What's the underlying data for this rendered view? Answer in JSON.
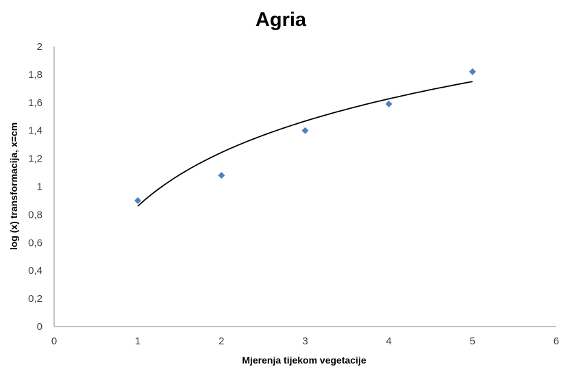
{
  "chart_data": {
    "type": "scatter",
    "title": "Agria",
    "xlabel": "Mjerenja tijekom vegetacije",
    "ylabel": "log (x) transformacija, x=cm",
    "xlim": [
      0,
      6
    ],
    "ylim": [
      0,
      2
    ],
    "x_ticks": [
      "0",
      "1",
      "2",
      "3",
      "4",
      "5",
      "6"
    ],
    "y_ticks": [
      "0",
      "0,2",
      "0,4",
      "0,6",
      "0,8",
      "1",
      "1,2",
      "1,4",
      "1,6",
      "1,8",
      "2"
    ],
    "grid": false,
    "legend": "none",
    "series": [
      {
        "x": [
          1,
          2,
          3,
          4,
          5
        ],
        "y": [
          0.9,
          1.08,
          1.4,
          1.59,
          1.82
        ],
        "color": "#4f81bd",
        "marker": "diamond",
        "trendline": {
          "type": "logarithmic",
          "x": [
            1,
            2,
            3,
            4,
            5
          ],
          "y": [
            0.86,
            1.18,
            1.41,
            1.59,
            1.75
          ],
          "color": "#000000"
        }
      }
    ]
  }
}
